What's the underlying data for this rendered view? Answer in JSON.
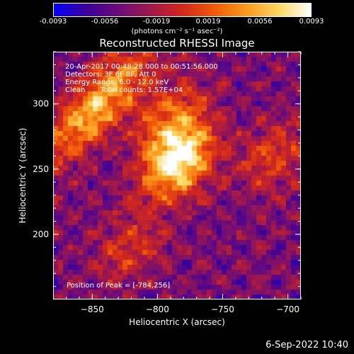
{
  "colorbar": {
    "colors": [
      "#0000ff",
      "#3b009a",
      "#6a0c7a",
      "#a0184a",
      "#d2281c",
      "#f15a0a",
      "#fb9a1e",
      "#fed860",
      "#ffffff"
    ],
    "ticks": [
      "-0.0093",
      "-0.0056",
      "-0.0019",
      "0.0019",
      "0.0056",
      "0.0093"
    ],
    "units": "(photons cm⁻² s⁻¹ asec⁻²)"
  },
  "chart_data": {
    "type": "heatmap",
    "title": "Reconstructed RHESSI Image",
    "xlabel": "Heliocentric X (arcsec)",
    "ylabel": "Heliocentric Y (arcsec)",
    "xlim": [
      -880,
      -690
    ],
    "ylim": [
      150,
      340
    ],
    "xticks": [
      -850,
      -800,
      -750,
      -700
    ],
    "yticks": [
      200,
      250,
      300
    ],
    "colorbar_range": [
      -0.0093,
      0.0093
    ],
    "peak": [
      -784,
      256
    ],
    "sources": [
      {
        "x": -784,
        "y": 256,
        "peak": 1.0
      },
      {
        "x": -845,
        "y": 300,
        "peak": 0.75
      },
      {
        "x": -790,
        "y": 290,
        "peak": 0.45
      },
      {
        "x": -710,
        "y": 260,
        "peak": 0.35
      },
      {
        "x": -820,
        "y": 190,
        "peak": 0.3
      }
    ]
  },
  "annotations": {
    "time": "20-Apr-2017 00:48:28.000 to 00:51:56.000",
    "detectors": "Detectors: 3F 6F 8F, Att 0",
    "energy": "Energy Range: 6.0 - 12.0 keV",
    "method": "Clean",
    "counts": "Total counts: 1.57E+04",
    "peak_label": "Position of Peak = [-784,256]"
  },
  "footer": {
    "date": "6-Sep-2022 10:40"
  }
}
